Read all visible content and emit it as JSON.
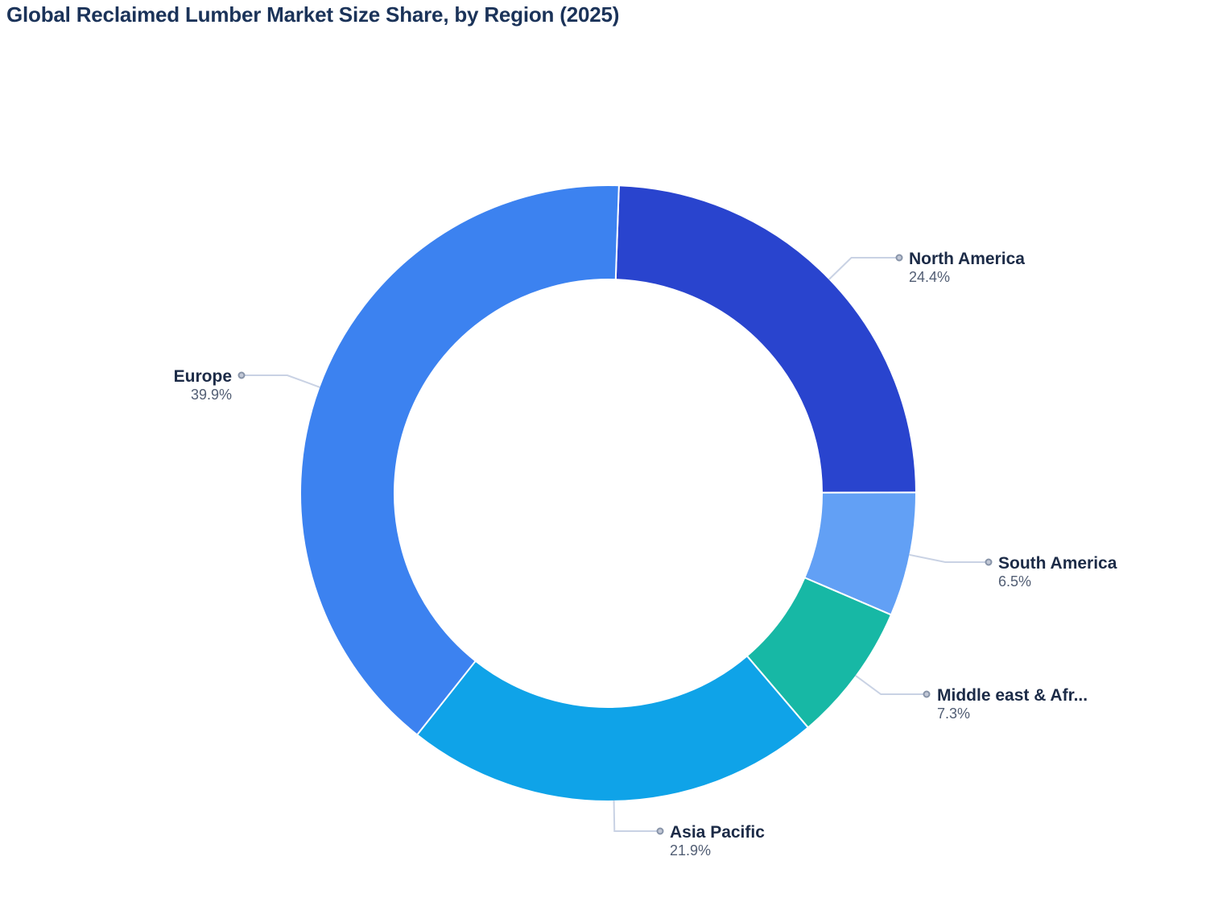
{
  "title": "Global Reclaimed Lumber Market Size Share, by Region (2025)",
  "colors": {
    "background": "#ffffff",
    "title_text": "#1b3359",
    "label_text": "#1c2b47",
    "value_text": "#525e74",
    "leader_line": "#c9d2e4",
    "leader_dot_fill": "#c2c8d6",
    "leader_dot_stroke": "#8894a9",
    "segment_border": "#ffffff"
  },
  "chart_data": {
    "type": "pie",
    "subtype": "donut",
    "title": "Global Reclaimed Lumber Market Size Share, by Region (2025)",
    "unit": "%",
    "start_angle_deg": 2,
    "clockwise_from_top": true,
    "legend": "none",
    "labels_style": "outside with leader lines and dots",
    "segments": [
      {
        "label": "North America",
        "value": 24.4,
        "display_value": "24.4%",
        "color": "#2944ce"
      },
      {
        "label": "South America",
        "value": 6.5,
        "display_value": "6.5%",
        "color": "#62a0f5"
      },
      {
        "label": "Middle east & Afr...",
        "value": 7.3,
        "display_value": "7.3%",
        "color": "#17b8a5"
      },
      {
        "label": "Asia Pacific",
        "value": 21.9,
        "display_value": "21.9%",
        "color": "#0fa3e8"
      },
      {
        "label": "Europe",
        "value": 39.9,
        "display_value": "39.9%",
        "color": "#3c82f0"
      }
    ]
  }
}
